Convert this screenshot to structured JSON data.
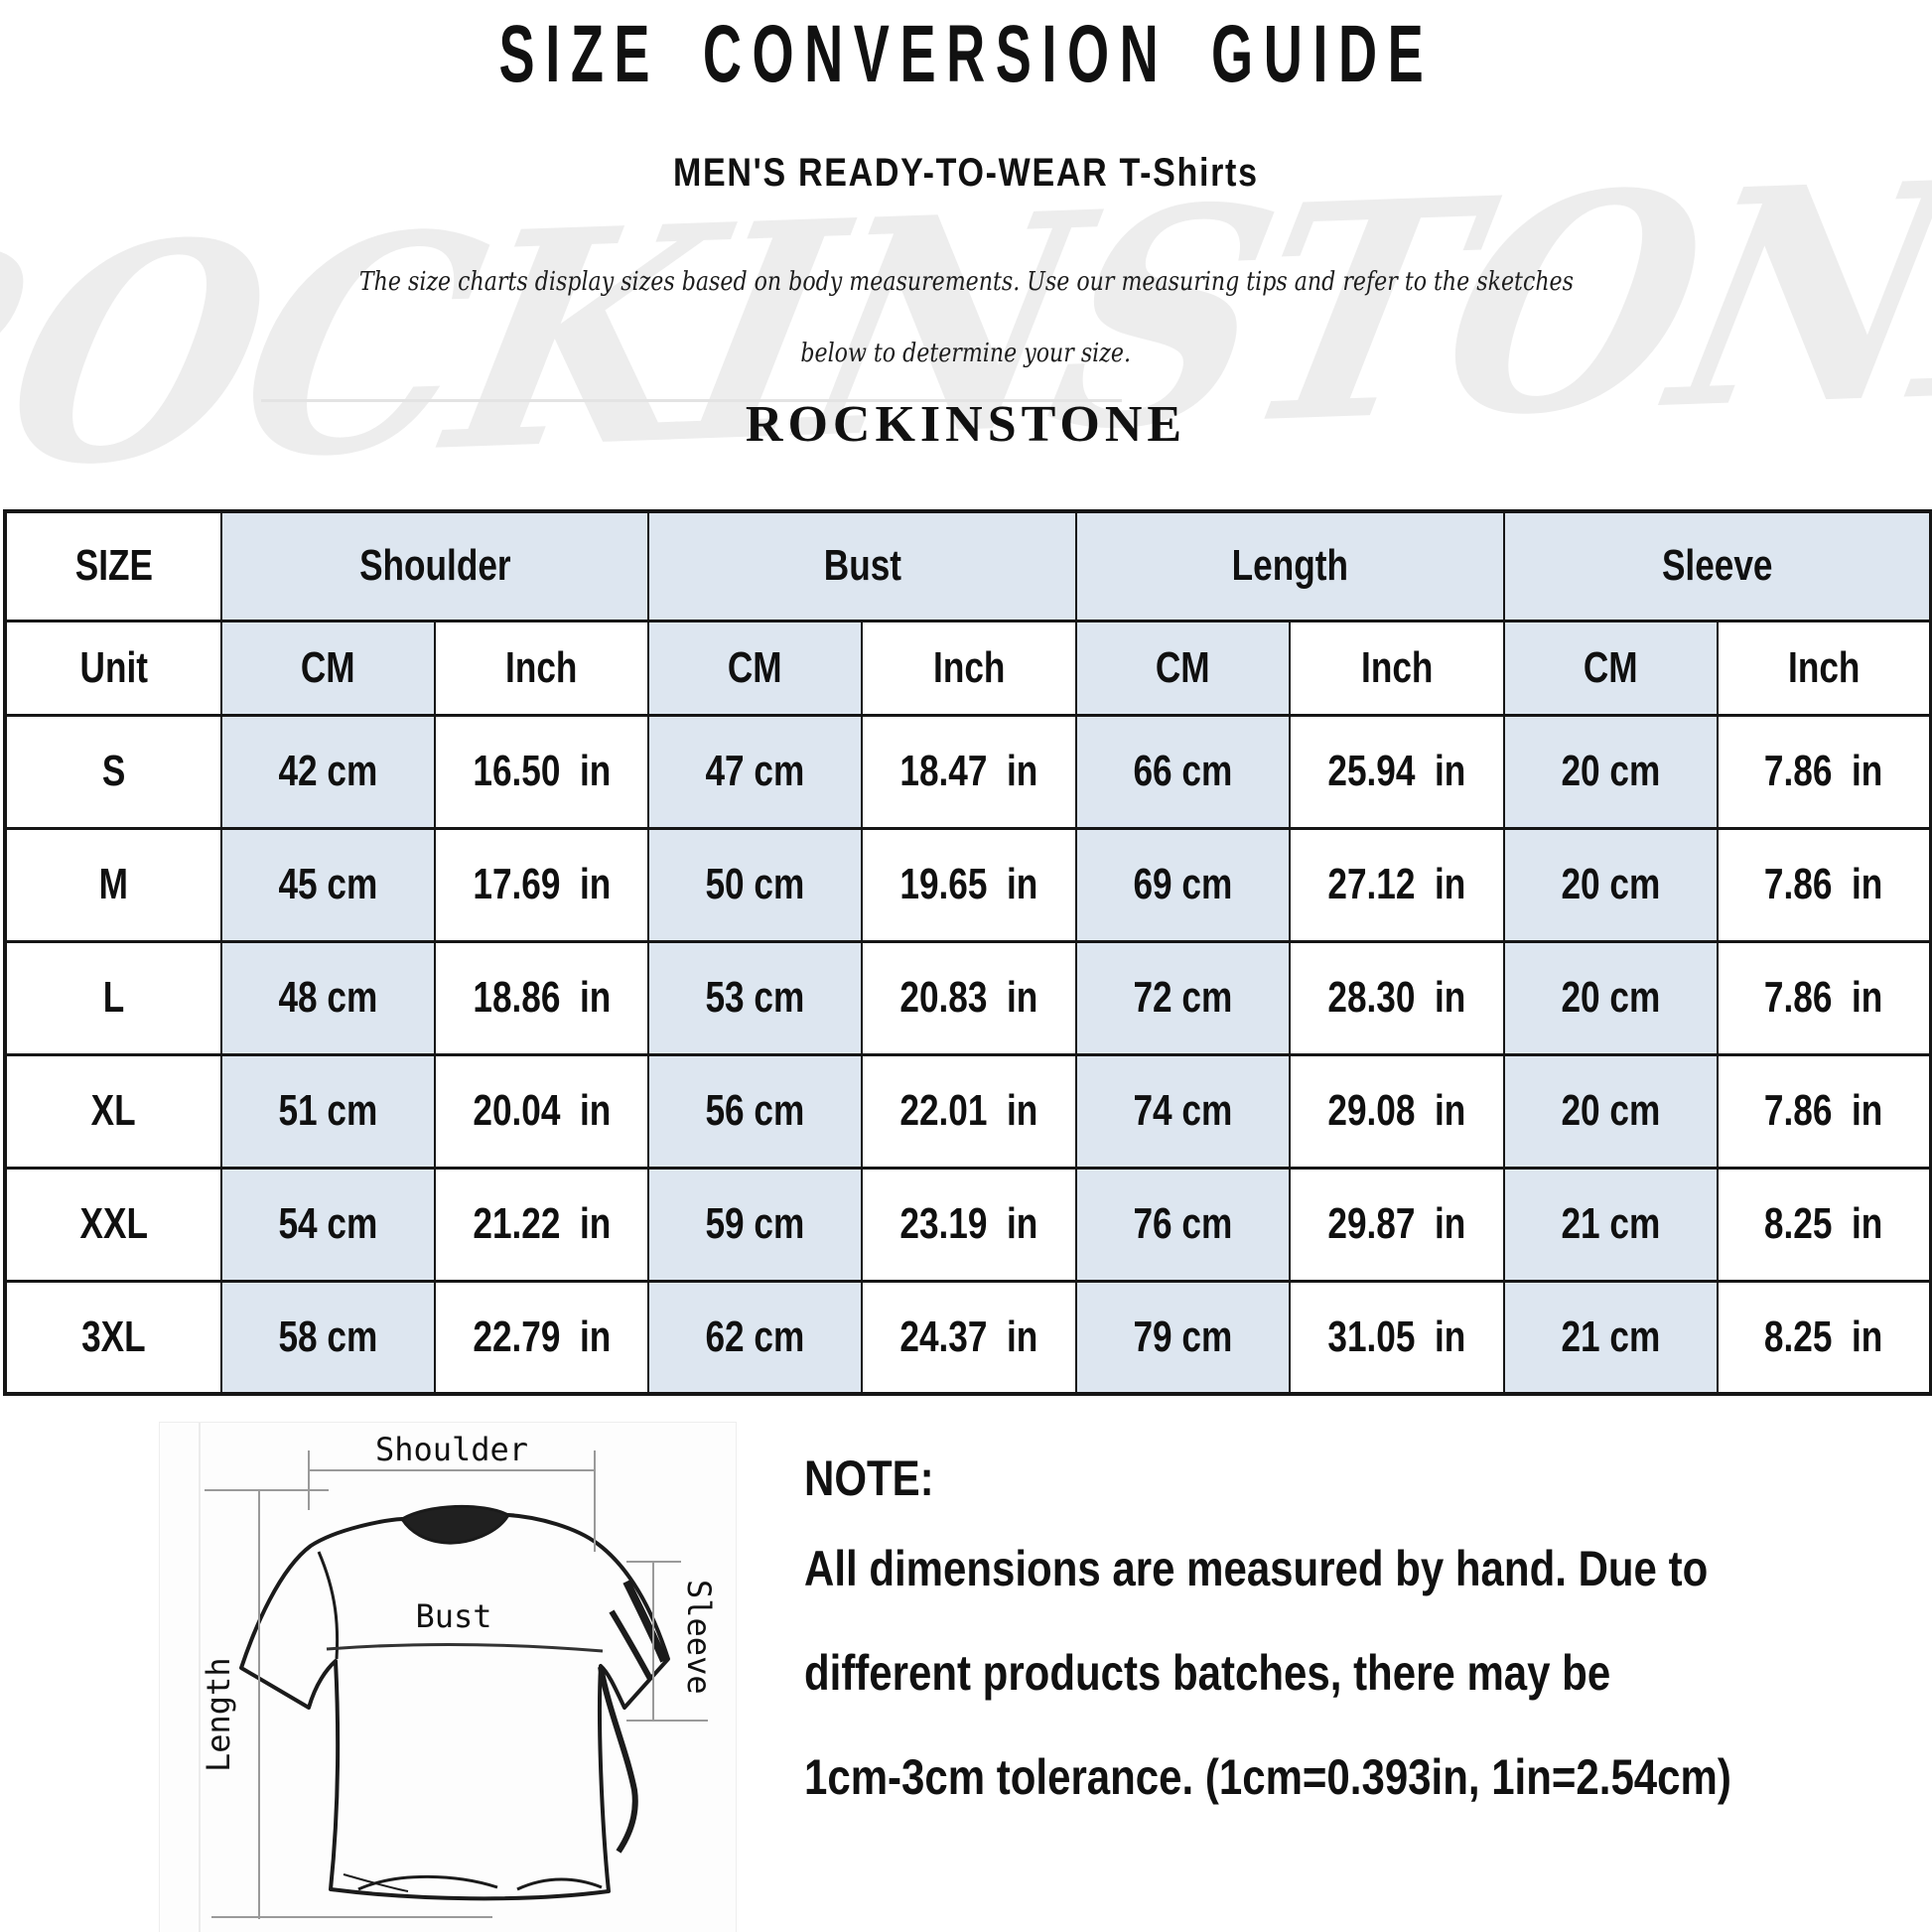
{
  "header": {
    "title": "SIZE CONVERSION GUIDE",
    "subtitle": "MEN'S READY-TO-WEAR",
    "subtitle_product": "T-Shirts",
    "description_line1": "The size charts display sizes based on body measurements.  Use our measuring tips and refer to the sketches",
    "description_line2": "below to determine your size.",
    "brand": "ROCKINSTONE",
    "watermark": "ROCKINSTONE"
  },
  "table": {
    "size_header": "SIZE",
    "unit_label": "Unit",
    "groups": [
      "Shoulder",
      "Bust",
      "Length",
      "Sleeve"
    ],
    "unit_columns": [
      "CM",
      "Inch",
      "CM",
      "Inch",
      "CM",
      "Inch",
      "CM",
      "Inch"
    ],
    "rows": [
      {
        "size": "S",
        "values": [
          "42 cm",
          "16.50  in",
          "47 cm",
          "18.47  in",
          "66 cm",
          "25.94  in",
          "20 cm",
          "7.86  in"
        ]
      },
      {
        "size": "M",
        "values": [
          "45 cm",
          "17.69  in",
          "50 cm",
          "19.65  in",
          "69 cm",
          "27.12  in",
          "20 cm",
          "7.86  in"
        ]
      },
      {
        "size": "L",
        "values": [
          "48 cm",
          "18.86  in",
          "53 cm",
          "20.83  in",
          "72 cm",
          "28.30  in",
          "20 cm",
          "7.86  in"
        ]
      },
      {
        "size": "XL",
        "values": [
          "51 cm",
          "20.04  in",
          "56 cm",
          "22.01  in",
          "74 cm",
          "29.08  in",
          "20 cm",
          "7.86  in"
        ]
      },
      {
        "size": "XXL",
        "values": [
          "54 cm",
          "21.22  in",
          "59 cm",
          "23.19  in",
          "76 cm",
          "29.87  in",
          "21 cm",
          "8.25  in"
        ]
      },
      {
        "size": "3XL",
        "values": [
          "58 cm",
          "22.79  in",
          "62 cm",
          "24.37  in",
          "79 cm",
          "31.05  in",
          "21 cm",
          "8.25  in"
        ]
      }
    ]
  },
  "diagram": {
    "shoulder_label": "Shoulder",
    "bust_label": "Bust",
    "length_label": "Length",
    "sleeve_label": "Sleeve"
  },
  "note": {
    "heading": "NOTE:",
    "line1": "All dimensions are measured by hand. Due to",
    "line2": "different products batches, there may be",
    "line3": "1cm-3cm tolerance. (1cm=0.393in, 1in=2.54cm)"
  },
  "colors": {
    "table_header_fill": "#dde6f0",
    "table_border": "#161616",
    "watermark": "#ededed"
  }
}
